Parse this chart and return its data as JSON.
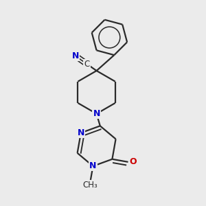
{
  "bg_color": "#ebebeb",
  "line_color": "#2a2a2a",
  "N_color": "#0000cc",
  "O_color": "#cc0000",
  "bond_lw": 1.6,
  "figsize": [
    3.0,
    3.0
  ],
  "dpi": 100,
  "xlim": [
    0.05,
    0.95
  ],
  "ylim": [
    0.03,
    0.97
  ]
}
